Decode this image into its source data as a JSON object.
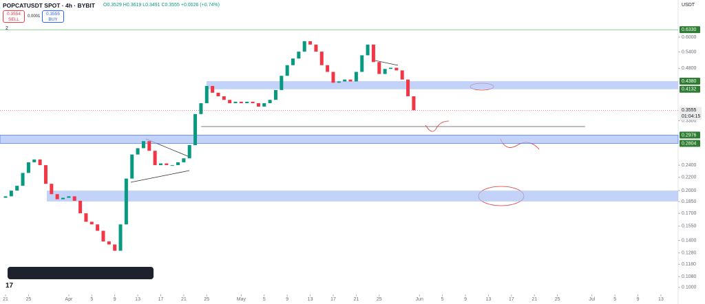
{
  "header": {
    "symbol": "POPCATUSDT SPOT · 4h · BYBIT",
    "ohlc": "O0.3529 H0.3619 L0.3491 C0.3555 +0.0026 (+0.74%)",
    "sell_price": "0.3554",
    "sell": "SELL",
    "spread": "0.0001",
    "buy_price": "0.3555",
    "buy": "BUY",
    "indicators": "2",
    "currency": "USDT"
  },
  "chart_data": {
    "type": "candlestick",
    "log_scale": true,
    "ylim": [
      0.0888,
      0.783
    ],
    "xlim": [
      -0.96,
      117
    ],
    "yticks": [
      {
        "value": 0.6,
        "label": "0.6000"
      },
      {
        "value": 0.54,
        "label": "0.5400"
      },
      {
        "value": 0.48,
        "label": "0.4800"
      },
      {
        "value": 0.33,
        "label": "0.3300"
      },
      {
        "value": 0.24,
        "label": "0.2400"
      },
      {
        "value": 0.22,
        "label": "0.2200"
      },
      {
        "value": 0.2,
        "label": "0.2000"
      },
      {
        "value": 0.185,
        "label": "0.1850"
      },
      {
        "value": 0.17,
        "label": "0.1700"
      },
      {
        "value": 0.155,
        "label": "0.1550"
      },
      {
        "value": 0.14,
        "label": "0.1400"
      },
      {
        "value": 0.128,
        "label": "0.1280"
      },
      {
        "value": 0.118,
        "label": "0.1180"
      },
      {
        "value": 0.108,
        "label": "0.1080"
      },
      {
        "value": 0.1,
        "label": "0.1000"
      }
    ],
    "xticks": [
      {
        "value": 0,
        "label": "21"
      },
      {
        "value": 4,
        "label": "25"
      },
      {
        "value": 11,
        "label": "Apr"
      },
      {
        "value": 15,
        "label": "5"
      },
      {
        "value": 19,
        "label": "9"
      },
      {
        "value": 23,
        "label": "13"
      },
      {
        "value": 27,
        "label": "17"
      },
      {
        "value": 31,
        "label": "21"
      },
      {
        "value": 35,
        "label": "25"
      },
      {
        "value": 41,
        "label": "May"
      },
      {
        "value": 45,
        "label": "5"
      },
      {
        "value": 49,
        "label": "9"
      },
      {
        "value": 53,
        "label": "13"
      },
      {
        "value": 57,
        "label": "17"
      },
      {
        "value": 61,
        "label": "21"
      },
      {
        "value": 65,
        "label": "25"
      },
      {
        "value": 72,
        "label": "Jun"
      },
      {
        "value": 76,
        "label": "5"
      },
      {
        "value": 80,
        "label": "9"
      },
      {
        "value": 84,
        "label": "13"
      },
      {
        "value": 88,
        "label": "17"
      },
      {
        "value": 92,
        "label": "21"
      },
      {
        "value": 96,
        "label": "25"
      },
      {
        "value": 102,
        "label": "Jul"
      },
      {
        "value": 106,
        "label": "5"
      },
      {
        "value": 110,
        "label": "9"
      },
      {
        "value": 114,
        "label": "13"
      }
    ],
    "price_labels": [
      {
        "value": 0.633,
        "label": "0.6330"
      },
      {
        "value": 0.438,
        "label": "0.4380"
      },
      0.4132,
      0.2976,
      0.2804
    ],
    "last_price": 0.3555,
    "countdown": "01:04:15",
    "zones": [
      [
        0.4132,
        0.438
      ],
      [
        0.2804,
        0.2976
      ],
      [
        0.185,
        0.2
      ]
    ],
    "up_color": "#089981",
    "down_color": "#f23645",
    "open": [
      0.19,
      0.192,
      0.2,
      0.207,
      0.227,
      0.245,
      0.25,
      0.24,
      0.21,
      0.195,
      0.188,
      0.19,
      0.192,
      0.186,
      0.17,
      0.16,
      0.157,
      0.15,
      0.139,
      0.136,
      0.13,
      0.157,
      0.218,
      0.259,
      0.271,
      0.285,
      0.266,
      0.24,
      0.243,
      0.24,
      0.24,
      0.245,
      0.252,
      0.277,
      0.346,
      0.374,
      0.423,
      0.403,
      0.393,
      0.383,
      0.374,
      0.378,
      0.374,
      0.378,
      0.374,
      0.365,
      0.374,
      0.383,
      0.411,
      0.455,
      0.491,
      0.515,
      0.541,
      0.583,
      0.569,
      0.541,
      0.491,
      0.468,
      0.433,
      0.437,
      0.443,
      0.437,
      0.468,
      0.527,
      0.569,
      0.502,
      0.461,
      0.478,
      0.482,
      0.473,
      0.443,
      0.393
    ],
    "close": [
      0.192,
      0.2,
      0.207,
      0.227,
      0.245,
      0.25,
      0.24,
      0.21,
      0.195,
      0.188,
      0.19,
      0.192,
      0.186,
      0.17,
      0.16,
      0.157,
      0.15,
      0.139,
      0.136,
      0.13,
      0.157,
      0.218,
      0.259,
      0.271,
      0.285,
      0.266,
      0.24,
      0.243,
      0.24,
      0.24,
      0.245,
      0.252,
      0.277,
      0.346,
      0.374,
      0.423,
      0.403,
      0.393,
      0.383,
      0.374,
      0.378,
      0.374,
      0.378,
      0.374,
      0.365,
      0.374,
      0.383,
      0.411,
      0.455,
      0.491,
      0.515,
      0.541,
      0.583,
      0.569,
      0.541,
      0.491,
      0.468,
      0.433,
      0.437,
      0.443,
      0.437,
      0.468,
      0.527,
      0.569,
      0.502,
      0.461,
      0.478,
      0.482,
      0.473,
      0.443,
      0.393,
      0.3555
    ]
  }
}
